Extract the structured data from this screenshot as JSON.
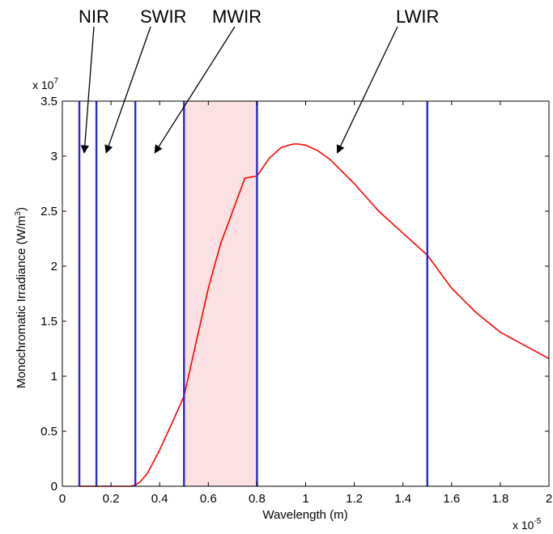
{
  "chart_data": {
    "type": "line",
    "xlabel": "Wavelength (m)",
    "ylabel": "Monochromatic Irradiance (W/m",
    "ylabel_sup": "3",
    "ylabel_close": ")",
    "x_multiplier": "x 10",
    "x_multiplier_exp": "-5",
    "y_multiplier": "x 10",
    "y_multiplier_exp": "7",
    "xlim": [
      0,
      2
    ],
    "ylim": [
      0,
      3.5
    ],
    "xticks": [
      "0",
      "0.2",
      "0.4",
      "0.6",
      "0.8",
      "1",
      "1.2",
      "1.4",
      "1.6",
      "1.8",
      "2"
    ],
    "yticks": [
      "0",
      "0.5",
      "1",
      "1.5",
      "2",
      "2.5",
      "3",
      "3.5"
    ],
    "grid": false,
    "curve_color": "#ff0000",
    "boundary_color": "#2929d6",
    "shade_color": "#fbe1e1",
    "series": [
      {
        "x": [
          0.07,
          0.2,
          0.28,
          0.3,
          0.32,
          0.35,
          0.4,
          0.45,
          0.5,
          0.55,
          0.6,
          0.65,
          0.7,
          0.75,
          0.8,
          0.85,
          0.9,
          0.95,
          0.97,
          1.0,
          1.05,
          1.1,
          1.2,
          1.3,
          1.4,
          1.5,
          1.6,
          1.7,
          1.8,
          1.9,
          2.0
        ],
        "y": [
          0.0,
          0.0,
          0.0,
          0.01,
          0.04,
          0.12,
          0.33,
          0.57,
          0.82,
          1.31,
          1.8,
          2.2,
          2.5,
          2.8,
          2.82,
          2.98,
          3.08,
          3.11,
          3.11,
          3.1,
          3.05,
          2.97,
          2.75,
          2.5,
          2.3,
          2.1,
          1.8,
          1.58,
          1.4,
          1.28,
          1.16
        ]
      }
    ],
    "boundaries": [
      0.07,
      0.14,
      0.3,
      0.5,
      0.8,
      1.5
    ],
    "shaded_region": [
      0.5,
      0.8
    ],
    "annotations": [
      {
        "text": "NIR",
        "target": [
          0.09,
          3.03
        ]
      },
      {
        "text": "SWIR",
        "target": [
          0.18,
          3.03
        ]
      },
      {
        "text": "MWIR",
        "target": [
          0.38,
          3.03
        ]
      },
      {
        "text": "LWIR",
        "target": [
          1.13,
          3.03
        ]
      }
    ]
  }
}
